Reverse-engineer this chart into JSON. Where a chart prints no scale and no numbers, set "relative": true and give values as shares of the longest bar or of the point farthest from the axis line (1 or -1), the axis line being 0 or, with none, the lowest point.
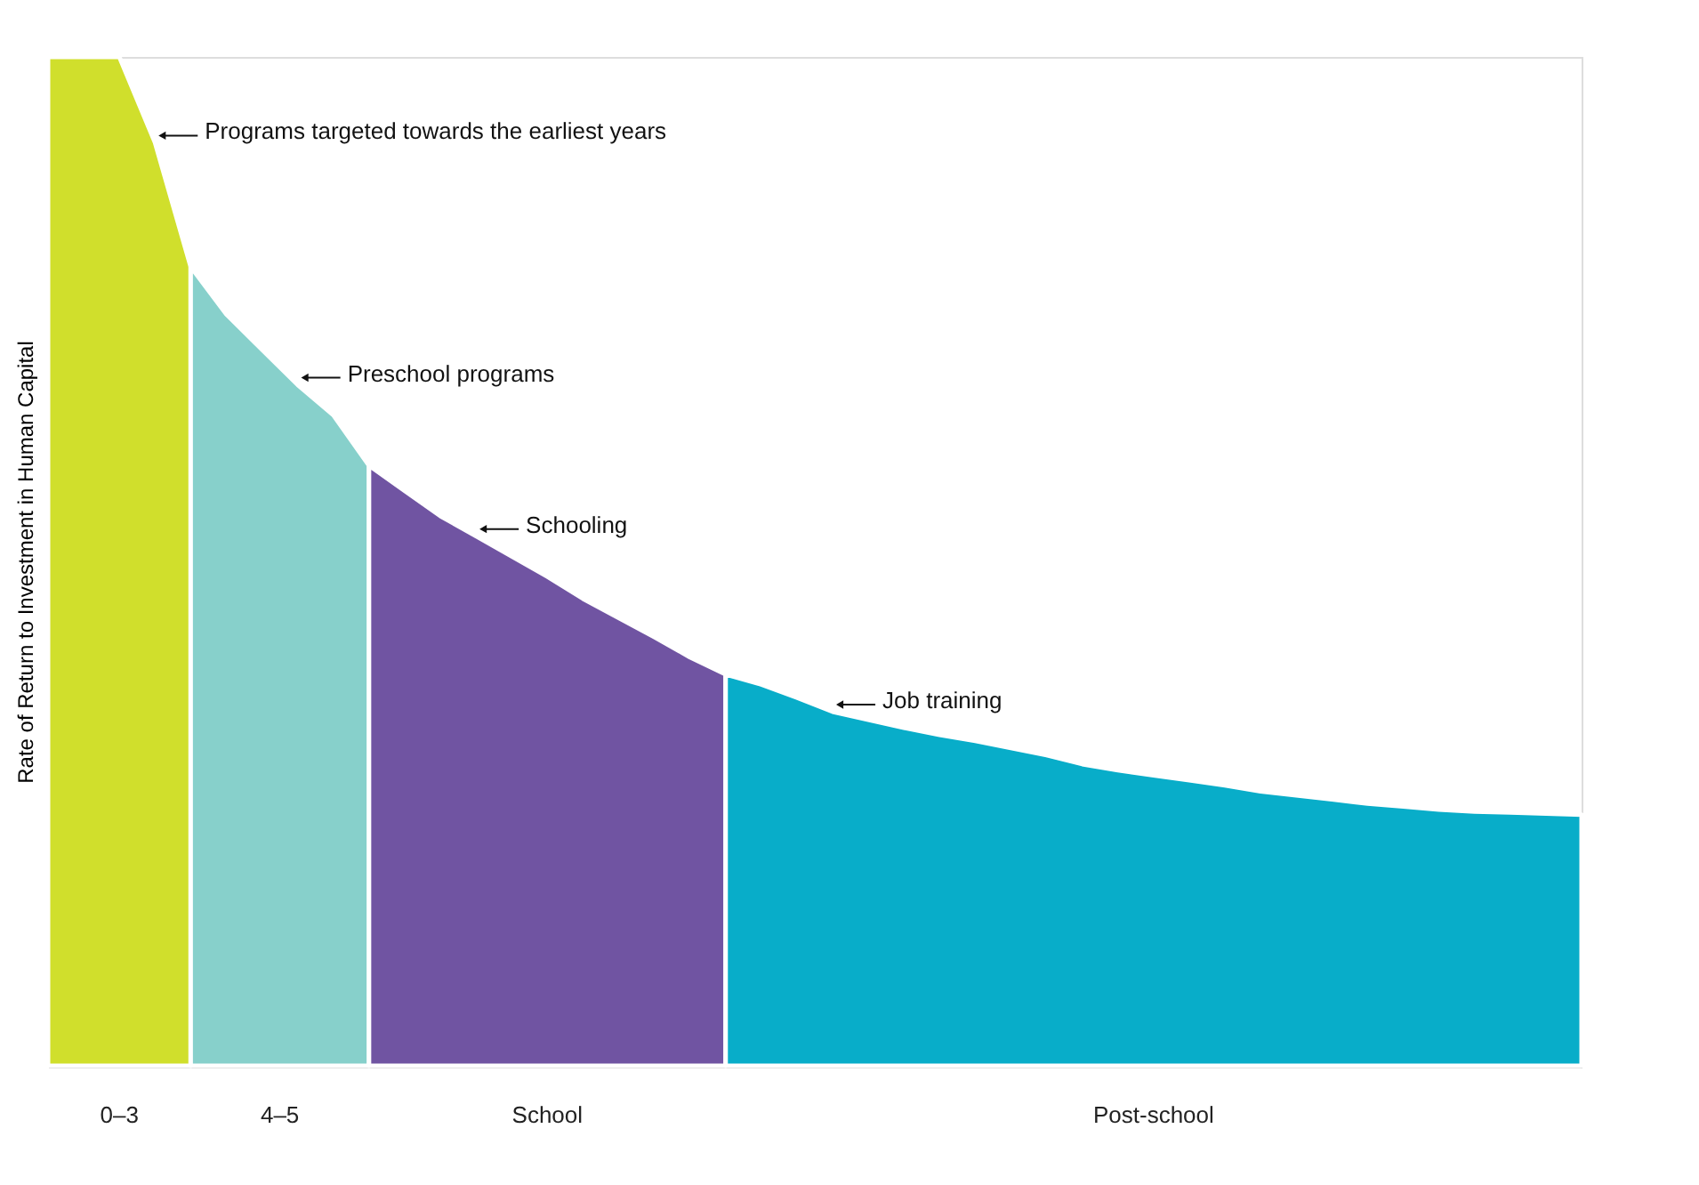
{
  "chart_data": {
    "type": "area",
    "relative": true,
    "ylabel": "Rate of Return to Investment in Human Capital",
    "categories": [
      null,
      null,
      null,
      null,
      null,
      null,
      null,
      null,
      null,
      null,
      null,
      null,
      null,
      null,
      null,
      null,
      null,
      null,
      null,
      null,
      null,
      null,
      null,
      null,
      null,
      null,
      null,
      null,
      null,
      null,
      null,
      null,
      null,
      null,
      null,
      null,
      null,
      null,
      null,
      null,
      null,
      null,
      null,
      null
    ],
    "series": [
      {
        "name": "0–3",
        "color": "#d0df2c",
        "values": [
          1.0,
          1.0,
          1.0,
          0.915,
          0.792,
          null,
          null,
          null,
          null,
          null,
          null,
          null,
          null,
          null,
          null,
          null,
          null,
          null,
          null,
          null,
          null,
          null,
          null,
          null,
          null,
          null,
          null,
          null,
          null,
          null,
          null,
          null,
          null,
          null,
          null,
          null,
          null,
          null,
          null,
          null,
          null,
          null,
          null,
          null
        ]
      },
      {
        "name": "4–5",
        "color": "#87d0cb",
        "values": [
          null,
          null,
          null,
          null,
          0.792,
          0.745,
          0.71,
          0.675,
          0.645,
          0.595,
          null,
          null,
          null,
          null,
          null,
          null,
          null,
          null,
          null,
          null,
          null,
          null,
          null,
          null,
          null,
          null,
          null,
          null,
          null,
          null,
          null,
          null,
          null,
          null,
          null,
          null,
          null,
          null,
          null,
          null,
          null,
          null,
          null,
          null
        ]
      },
      {
        "name": "School",
        "color": "#7054a2",
        "values": [
          null,
          null,
          null,
          null,
          null,
          null,
          null,
          null,
          null,
          0.595,
          0.57,
          0.545,
          0.525,
          0.505,
          0.485,
          0.463,
          0.444,
          0.425,
          0.405,
          0.388,
          null,
          null,
          null,
          null,
          null,
          null,
          null,
          null,
          null,
          null,
          null,
          null,
          null,
          null,
          null,
          null,
          null,
          null,
          null,
          null,
          null,
          null,
          null,
          null
        ]
      },
      {
        "name": "Post-school",
        "color": "#08adc9",
        "values": [
          null,
          null,
          null,
          null,
          null,
          null,
          null,
          null,
          null,
          null,
          null,
          null,
          null,
          null,
          null,
          null,
          null,
          null,
          null,
          0.388,
          0.378,
          0.365,
          0.351,
          0.343,
          0.335,
          0.328,
          0.322,
          0.315,
          0.308,
          0.299,
          0.293,
          0.288,
          0.283,
          0.278,
          0.272,
          0.268,
          0.264,
          0.26,
          0.257,
          0.254,
          0.252,
          0.251,
          0.25,
          0.249
        ]
      }
    ],
    "annotations": [
      "Programs targeted towards the earliest years",
      "Preschool programs",
      "Schooling",
      "Job training"
    ]
  }
}
